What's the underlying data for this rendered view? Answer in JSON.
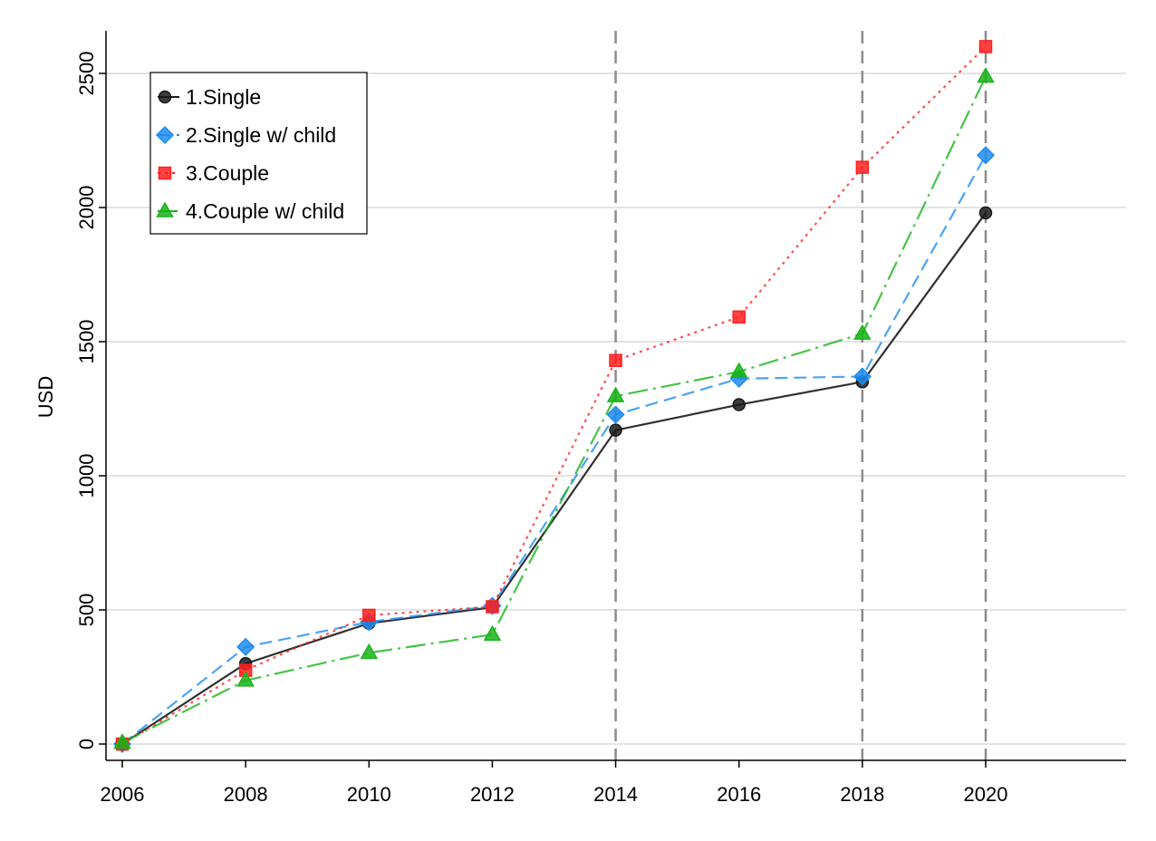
{
  "chart_data": {
    "type": "line",
    "title": "",
    "xlabel": "",
    "ylabel": "USD",
    "x": [
      2006,
      2008,
      2010,
      2012,
      2014,
      2016,
      2018,
      2020
    ],
    "xticks": [
      "2006",
      "2008",
      "2010",
      "2012",
      "2014",
      "2016",
      "2018",
      "2020"
    ],
    "yticks": [
      "0",
      "500",
      "1000",
      "1500",
      "2000",
      "2500"
    ],
    "xlim": [
      2006,
      2022
    ],
    "ylim": [
      -60,
      2660
    ],
    "grid": "horizontal",
    "vlines": [
      2014,
      2018,
      2020
    ],
    "legend": "top-left",
    "series": [
      {
        "name": "1.Single",
        "values": [
          0,
          300,
          450,
          510,
          1170,
          1265,
          1350,
          1980
        ],
        "color": "#1a1a1a",
        "marker": "circle",
        "dash": "solid"
      },
      {
        "name": "2.Single w/ child",
        "values": [
          0,
          362,
          455,
          515,
          1228,
          1362,
          1370,
          2195
        ],
        "color": "#1e8cf0",
        "marker": "diamond",
        "dash": "dashed"
      },
      {
        "name": "3.Couple",
        "values": [
          0,
          275,
          480,
          512,
          1430,
          1592,
          2150,
          2600
        ],
        "color": "#ff2020",
        "marker": "square",
        "dash": "dotted"
      },
      {
        "name": "4.Couple w/ child",
        "values": [
          5,
          237,
          340,
          408,
          1297,
          1388,
          1530,
          2488
        ],
        "color": "#18b418",
        "marker": "triangle",
        "dash": "dashdot"
      }
    ]
  }
}
